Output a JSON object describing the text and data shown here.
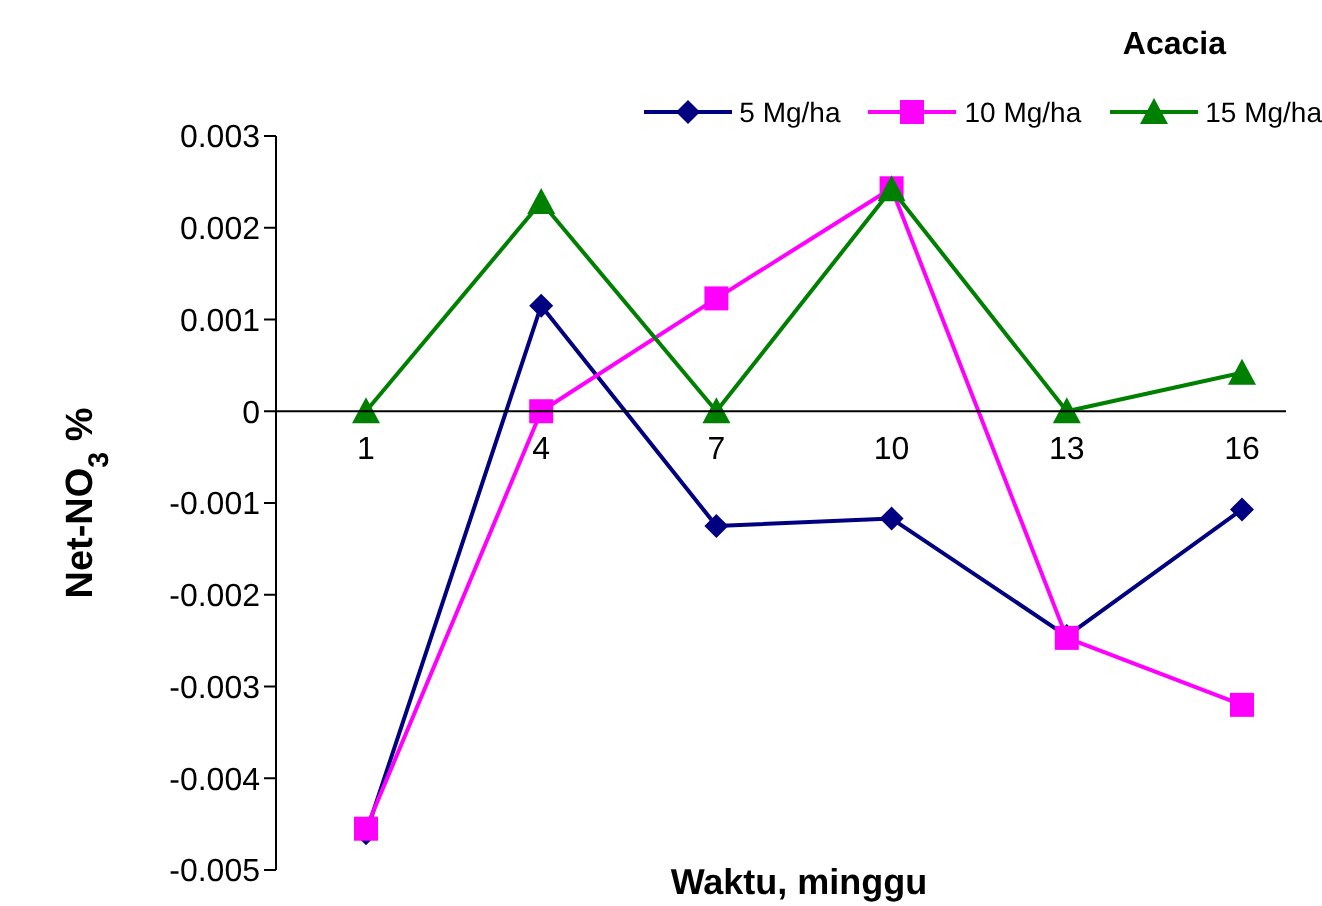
{
  "chart_data": {
    "type": "line",
    "title": "Acacia",
    "xlabel": "Waktu, minggu",
    "ylabel": "Net-NO$_{3}$ %",
    "categories": [
      "1",
      "4",
      "7",
      "10",
      "13",
      "16"
    ],
    "series": [
      {
        "name": "5 Mg/ha",
        "color": "#000080",
        "marker": "diamond",
        "values": [
          -0.0046,
          0.00115,
          -0.00125,
          -0.00117,
          -0.00245,
          -0.00107
        ]
      },
      {
        "name": "10 Mg/ha",
        "color": "#ff00ff",
        "marker": "square",
        "values": [
          -0.00455,
          0,
          0.00123,
          0.00243,
          -0.00247,
          -0.0032
        ]
      },
      {
        "name": "15 Mg/ha",
        "color": "#008000",
        "marker": "triangle",
        "values": [
          0,
          0.00228,
          0,
          0.00242,
          0,
          0.00042
        ]
      }
    ],
    "ylim": [
      -0.005,
      0.003
    ],
    "yticks": [
      -0.005,
      -0.004,
      -0.003,
      -0.002,
      -0.001,
      0,
      0.001,
      0.002,
      0.003
    ],
    "grid": false,
    "legend": "top right",
    "line_style": "solid"
  }
}
